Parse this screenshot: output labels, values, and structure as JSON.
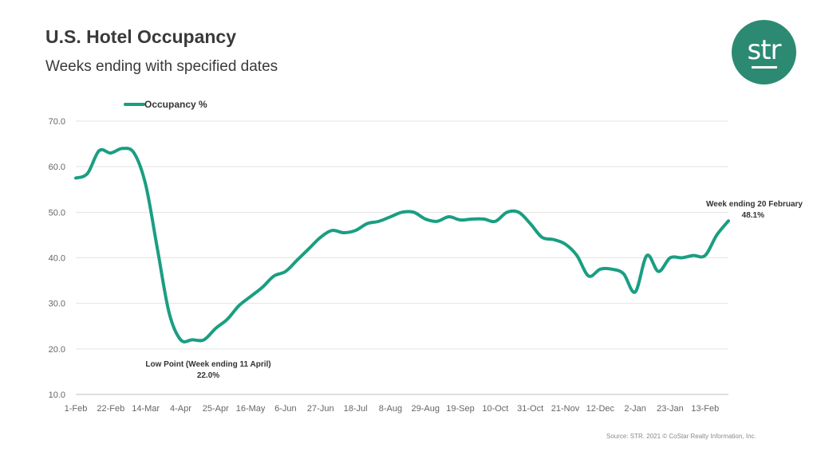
{
  "header": {
    "title": "U.S. Hotel Occupancy",
    "subtitle": "Weeks ending with specified dates"
  },
  "logo": {
    "text": "str"
  },
  "source": "Source: STR. 2021 © CoStar Realty Information, Inc.",
  "colors": {
    "series": "#1a9e82",
    "logo": "#2d8a72",
    "grid": "#e3e3e3"
  },
  "chart_data": {
    "type": "line",
    "title": "U.S. Hotel Occupancy",
    "subtitle": "Weeks ending with specified dates",
    "xlabel": "",
    "ylabel": "",
    "ylim": [
      10,
      70
    ],
    "yticks": [
      "70.0",
      "60.0",
      "50.0",
      "40.0",
      "30.0",
      "20.0",
      "10.0"
    ],
    "xticks": [
      "1-Feb",
      "22-Feb",
      "14-Mar",
      "4-Apr",
      "25-Apr",
      "16-May",
      "6-Jun",
      "27-Jun",
      "18-Jul",
      "8-Aug",
      "29-Aug",
      "19-Sep",
      "10-Oct",
      "31-Oct",
      "21-Nov",
      "12-Dec",
      "2-Jan",
      "23-Jan",
      "13-Feb"
    ],
    "legend": {
      "position": "top-left",
      "label": "Occupancy %"
    },
    "series": [
      {
        "name": "Occupancy %",
        "values": [
          57.5,
          58.5,
          63.5,
          63.0,
          64.0,
          63.0,
          56.0,
          42.0,
          28.0,
          22.0,
          22.0,
          22.0,
          24.5,
          26.5,
          29.5,
          31.5,
          33.5,
          36.0,
          37.0,
          39.5,
          42.0,
          44.5,
          46.0,
          45.5,
          46.0,
          47.5,
          48.0,
          49.0,
          50.0,
          50.0,
          48.5,
          48.0,
          49.0,
          48.3,
          48.5,
          48.5,
          48.0,
          50.0,
          50.0,
          47.5,
          44.5,
          44.0,
          43.0,
          40.5,
          36.0,
          37.5,
          37.5,
          36.5,
          32.5,
          40.5,
          37.0,
          40.0,
          40.0,
          40.5,
          40.5,
          45.0,
          48.1
        ]
      }
    ],
    "annotations": [
      {
        "label": "Low Point (Week ending 11 April)",
        "value_text": "22.0%"
      },
      {
        "label": "Week ending 20 February",
        "value_text": "48.1%"
      }
    ]
  }
}
